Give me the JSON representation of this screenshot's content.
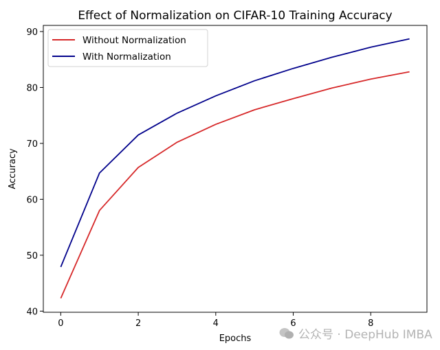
{
  "chart_data": {
    "type": "line",
    "title": "Effect of Normalization on CIFAR-10 Training Accuracy",
    "xlabel": "Epochs",
    "ylabel": "Accuracy",
    "x": [
      0,
      1,
      2,
      3,
      4,
      5,
      6,
      7,
      8,
      9
    ],
    "xlim": [
      -0.45,
      9.45
    ],
    "ylim": [
      39.8,
      91.1
    ],
    "xticks": [
      0,
      2,
      4,
      6,
      8
    ],
    "yticks": [
      40,
      50,
      60,
      70,
      80,
      90
    ],
    "grid": false,
    "legend_position": "top-left",
    "series": [
      {
        "name": "Without Normalization",
        "color": "#d62728",
        "values": [
          42.3,
          58.0,
          65.7,
          70.2,
          73.4,
          76.0,
          78.0,
          79.9,
          81.5,
          82.8
        ]
      },
      {
        "name": "With Normalization",
        "color": "#00008b",
        "values": [
          47.9,
          64.7,
          71.5,
          75.4,
          78.5,
          81.2,
          83.4,
          85.4,
          87.2,
          88.7
        ]
      }
    ]
  },
  "watermark": {
    "icon": "wechat-icon",
    "text": "公众号 · DeepHub IMBA"
  }
}
